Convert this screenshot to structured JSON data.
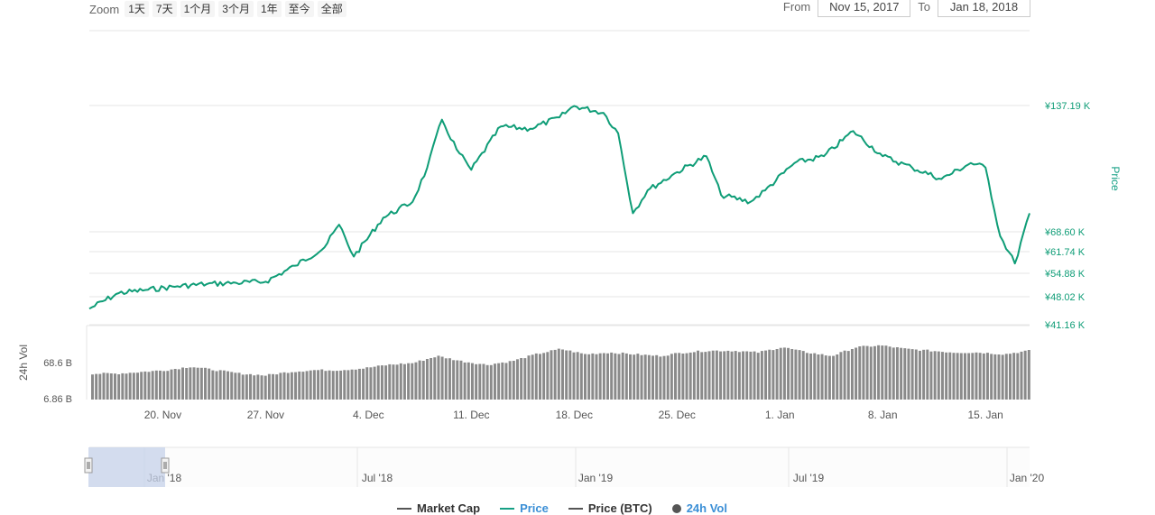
{
  "toolbar": {
    "zoom_label": "Zoom",
    "zoom_buttons": [
      "1天",
      "7天",
      "1个月",
      "3个月",
      "1年",
      "至今",
      "全部"
    ],
    "from_label": "From",
    "from_value": "Nov 15, 2017",
    "to_label": "To",
    "to_value": "Jan 18, 2018"
  },
  "legend": {
    "items": [
      {
        "label": "Market Cap",
        "color": "#555555"
      },
      {
        "label": "Price",
        "color": "#16a085"
      },
      {
        "label": "Price (BTC)",
        "color": "#555555"
      },
      {
        "label": "24h Vol",
        "color": "#555555"
      }
    ]
  },
  "chart_data": [
    {
      "type": "line",
      "series": [
        {
          "name": "Price",
          "color": "#0f9d77"
        }
      ],
      "ylabel": "Price",
      "y_ticks": [
        "¥137.19 K",
        "¥68.60 K",
        "¥61.74 K",
        "¥54.88 K",
        "¥48.02 K",
        "¥41.16 K"
      ],
      "x_ticks": [
        "20. Nov",
        "27. Nov",
        "4. Dec",
        "11. Dec",
        "18. Dec",
        "25. Dec",
        "1. Jan",
        "8. Jan",
        "15. Jan"
      ],
      "x": [
        "2017-11-15",
        "2017-11-17",
        "2017-11-19",
        "2017-11-21",
        "2017-11-23",
        "2017-11-25",
        "2017-11-27",
        "2017-11-29",
        "2017-12-01",
        "2017-12-02",
        "2017-12-03",
        "2017-12-05",
        "2017-12-07",
        "2017-12-08",
        "2017-12-09",
        "2017-12-10",
        "2017-12-11",
        "2017-12-13",
        "2017-12-15",
        "2017-12-17",
        "2017-12-18",
        "2017-12-20",
        "2017-12-21",
        "2017-12-22",
        "2017-12-23",
        "2017-12-25",
        "2017-12-27",
        "2017-12-28",
        "2017-12-30",
        "2017-12-31",
        "2018-01-02",
        "2018-01-04",
        "2018-01-06",
        "2018-01-08",
        "2018-01-10",
        "2018-01-12",
        "2018-01-14",
        "2018-01-15",
        "2018-01-16",
        "2018-01-17",
        "2018-01-18"
      ],
      "y": [
        48.2,
        55.0,
        56.5,
        58.0,
        59.0,
        59.5,
        60.0,
        67.0,
        75.0,
        85.0,
        71.0,
        88.0,
        95.0,
        110.0,
        131.0,
        118.0,
        109.0,
        128.0,
        127.0,
        132.0,
        137.0,
        134.0,
        125.0,
        90.0,
        100.0,
        108.0,
        115.0,
        98.0,
        95.0,
        100.0,
        112.0,
        115.0,
        126.0,
        115.0,
        110.0,
        105.0,
        112.0,
        110.0,
        80.0,
        68.0,
        90.0
      ]
    },
    {
      "type": "bar",
      "series": [
        {
          "name": "24h Vol",
          "color": "#8a8a8a"
        }
      ],
      "ylabel": "24h Vol",
      "y_ticks": [
        "68.6 B",
        "6.86 B"
      ],
      "values": [
        6,
        6,
        7,
        8,
        10,
        8,
        6,
        5,
        7,
        8,
        8,
        9,
        11,
        12,
        16,
        13,
        11,
        13,
        17,
        20,
        17,
        18,
        17,
        16,
        18,
        19,
        19,
        18,
        21,
        18,
        16,
        21,
        22,
        20,
        19,
        18,
        18,
        17,
        19
      ]
    },
    {
      "type": "area",
      "name": "navigator",
      "x_ticks": [
        "Jan '18",
        "Jul '18",
        "Jan '19",
        "Jul '19",
        "Jan '20"
      ]
    }
  ]
}
